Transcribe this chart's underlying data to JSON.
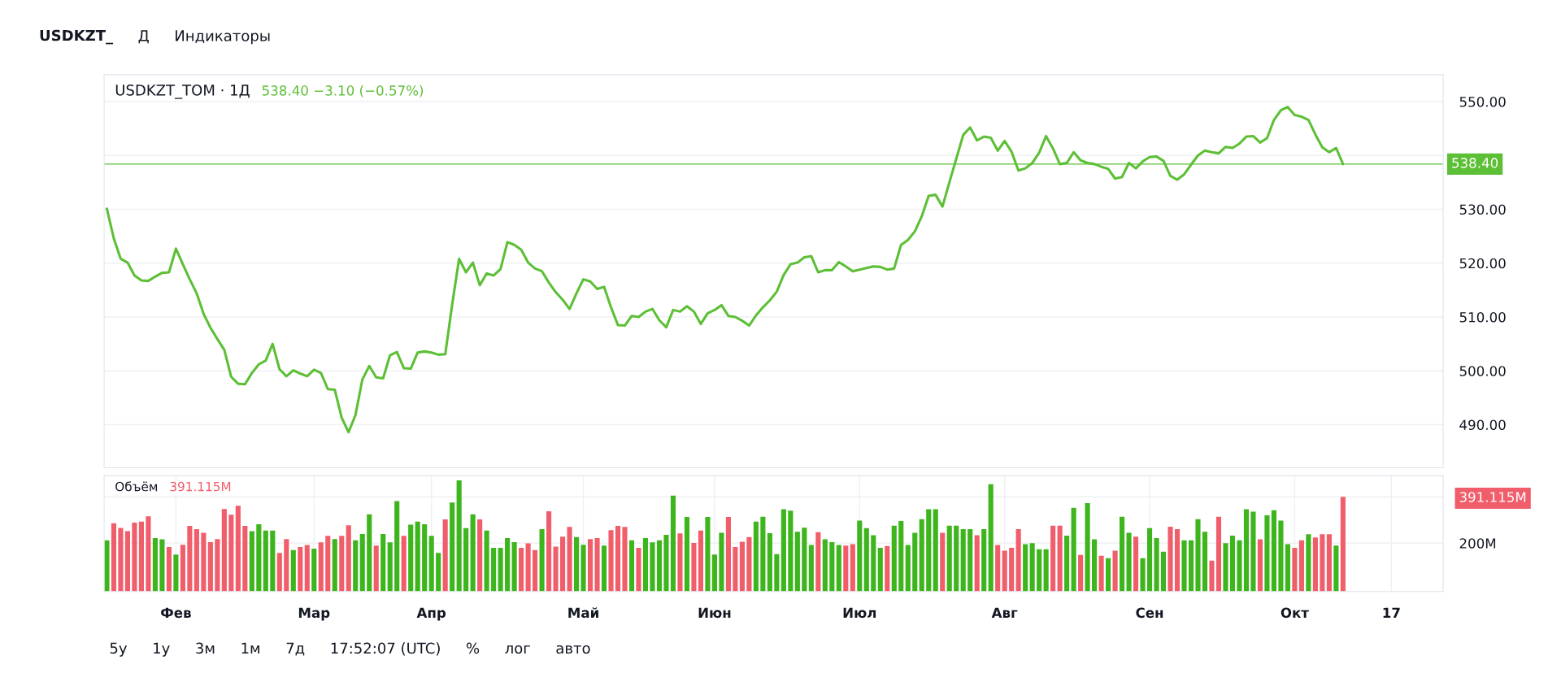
{
  "chart_data": [
    {
      "type": "line",
      "title": "USDKZT_TOM · 1Д",
      "subtitle": "538.40 −3.10 (−0.57%)",
      "annotations": [
        "USDKZT_",
        "Д",
        "Индикаторы"
      ],
      "categories": [
        null,
        null,
        null,
        null,
        null,
        null,
        null,
        null,
        null,
        null,
        null,
        null,
        null,
        null,
        null,
        null,
        null,
        null,
        null,
        null,
        null,
        null,
        null,
        null,
        null,
        null,
        null,
        null,
        null,
        null,
        null,
        null,
        null,
        null,
        null,
        null,
        null,
        null,
        null,
        null,
        null,
        null,
        null,
        null,
        null,
        null,
        null,
        null,
        null,
        null,
        null,
        null,
        null,
        null,
        null,
        null,
        null,
        null,
        null,
        null,
        null,
        null,
        null,
        null,
        null,
        null,
        null,
        null,
        null,
        null,
        null,
        null,
        null,
        null,
        null,
        null,
        null,
        null,
        null,
        null,
        null,
        null,
        null,
        null,
        null,
        null,
        null,
        null,
        null,
        null,
        null,
        null,
        null,
        null,
        null,
        null,
        null,
        null,
        null,
        null,
        null,
        null,
        null,
        null,
        null,
        null,
        null,
        null,
        null,
        null,
        null,
        null,
        null,
        null,
        null,
        null,
        null,
        null,
        null,
        null,
        null,
        null,
        null,
        null,
        null,
        null,
        null,
        null,
        null,
        null,
        null,
        null,
        null,
        null,
        null,
        null,
        null,
        null,
        null,
        null,
        null,
        null,
        null,
        null,
        null,
        null,
        null,
        null,
        null,
        null,
        null,
        null,
        null,
        null,
        null,
        null,
        null,
        null,
        null,
        null,
        null,
        null,
        null,
        null,
        null,
        null,
        null,
        null,
        null,
        null,
        null,
        null,
        null,
        null,
        null,
        null,
        null,
        null,
        null,
        null,
        null,
        null,
        null,
        null,
        null,
        null,
        null,
        null,
        null,
        null,
        null,
        null,
        null,
        null
      ],
      "series": [
        {
          "color": "#5cbf35",
          "values": [
            530.1,
            524.6,
            520.8,
            520.1,
            517.7,
            516.8,
            516.7,
            517.5,
            518.2,
            518.3,
            522.7,
            519.8,
            517,
            514.4,
            510.6,
            508,
            505.9,
            503.9,
            498.9,
            497.6,
            497.5,
            499.6,
            501.2,
            501.9,
            505,
            500.3,
            499,
            500.1,
            499.5,
            499,
            500.2,
            499.6,
            496.6,
            496.5,
            491.3,
            488.6,
            491.8,
            498.4,
            500.9,
            498.8,
            498.6,
            502.9,
            503.5,
            500.5,
            500.4,
            503.4,
            503.6,
            503.4,
            503,
            503.1,
            512.3,
            520.8,
            518.3,
            520.1,
            515.9,
            518.1,
            517.7,
            518.9,
            523.9,
            523.4,
            522.5,
            520.1,
            519,
            518.5,
            516.4,
            514.6,
            513.2,
            511.5,
            514.4,
            517,
            516.6,
            515.2,
            515.6,
            511.8,
            508.5,
            508.4,
            510.2,
            510,
            511,
            511.5,
            509.4,
            508.1,
            511.3,
            511,
            512,
            511,
            508.7,
            510.7,
            511.3,
            512.2,
            510.2,
            510,
            509.3,
            508.4,
            510.3,
            511.8,
            513.1,
            514.7,
            517.8,
            519.8,
            520.1,
            521.1,
            521.3,
            518.3,
            518.7,
            518.7,
            520.2,
            519.4,
            518.5,
            518.8,
            519.1,
            519.4,
            519.3,
            518.8,
            519,
            523.4,
            524.3,
            525.9,
            528.7,
            532.5,
            532.7,
            530.5,
            535,
            539.4,
            543.8,
            545.2,
            542.8,
            543.5,
            543.3,
            540.9,
            542.7,
            540.7,
            537.2,
            537.6,
            538.6,
            540.5,
            543.6,
            541.3,
            538.4,
            538.6,
            540.6,
            539.1,
            538.6,
            538.4,
            537.9,
            537.5,
            535.7,
            536,
            538.6,
            537.6,
            538.9,
            539.7,
            539.8,
            539,
            536.2,
            535.5,
            536.5,
            538.3,
            540,
            540.9,
            540.6,
            540.4,
            541.6,
            541.4,
            542.2,
            543.5,
            543.6,
            542.4,
            543.2,
            546.6,
            548.4,
            549,
            547.5,
            547.2,
            546.6,
            543.9,
            541.5,
            540.6,
            541.4,
            538.4,
            null,
            null,
            null,
            null,
            null,
            null,
            null,
            null,
            null,
            null,
            null,
            null,
            null,
            null
          ]
        }
      ],
      "ylim": [
        482,
        555
      ],
      "yticks": [
        {
          "value": 490,
          "label": "490.00"
        },
        {
          "value": 500,
          "label": "500.00"
        },
        {
          "value": 510,
          "label": "510.00"
        },
        {
          "value": 520,
          "label": "520.00"
        },
        {
          "value": 530,
          "label": "530.00"
        },
        {
          "value": 540,
          "label": null
        },
        {
          "value": 550,
          "label": "550.00"
        }
      ],
      "ref_lines": [
        {
          "axis": "y",
          "value": 538.4,
          "label": "538.40",
          "color": "#5cbf35"
        }
      ],
      "grid": "y",
      "tick_labels": "y",
      "line_style": "solid",
      "marker": "none"
    },
    {
      "type": "bar",
      "title": "Объём",
      "subtitle": "391.115M",
      "annotations": [
        "5y",
        "1y",
        "3м",
        "1м",
        "7д",
        "17:52:07 (UTC)",
        "%",
        "лог",
        "авто"
      ],
      "categories": [
        null,
        null,
        null,
        null,
        null,
        null,
        null,
        null,
        null,
        null,
        "Фев",
        null,
        null,
        null,
        null,
        null,
        null,
        null,
        null,
        null,
        null,
        null,
        null,
        null,
        null,
        null,
        null,
        null,
        null,
        null,
        "Мар",
        null,
        null,
        null,
        null,
        null,
        null,
        null,
        null,
        null,
        null,
        null,
        null,
        null,
        null,
        null,
        null,
        "Апр",
        null,
        null,
        null,
        null,
        null,
        null,
        null,
        null,
        null,
        null,
        null,
        null,
        null,
        null,
        null,
        null,
        null,
        null,
        null,
        null,
        null,
        "Май",
        null,
        null,
        null,
        null,
        null,
        null,
        null,
        null,
        null,
        null,
        null,
        null,
        null,
        null,
        null,
        null,
        null,
        null,
        "Июн",
        null,
        null,
        null,
        null,
        null,
        null,
        null,
        null,
        null,
        null,
        null,
        null,
        null,
        null,
        null,
        null,
        null,
        null,
        null,
        null,
        "Июл",
        null,
        null,
        null,
        null,
        null,
        null,
        null,
        null,
        null,
        null,
        null,
        null,
        null,
        null,
        null,
        null,
        null,
        null,
        null,
        null,
        "Авг",
        null,
        null,
        null,
        null,
        null,
        null,
        null,
        null,
        null,
        null,
        null,
        null,
        null,
        null,
        null,
        null,
        null,
        null,
        null,
        null,
        "Сен",
        null,
        null,
        null,
        null,
        null,
        null,
        null,
        null,
        null,
        null,
        null,
        null,
        null,
        null,
        null,
        null,
        null,
        null,
        null,
        null,
        "Окт",
        null,
        null,
        null,
        null,
        null,
        null,
        null,
        null,
        null,
        null,
        null,
        null,
        null,
        "17",
        null,
        null,
        null,
        null,
        null,
        null,
        null
      ],
      "values": [
        212,
        282,
        263,
        249,
        285,
        289,
        311,
        221,
        216,
        184,
        153,
        193,
        271,
        258,
        243,
        204,
        217,
        341,
        317,
        354,
        271,
        249,
        278,
        252,
        252,
        160,
        217,
        171,
        184,
        192,
        177,
        203,
        230,
        217,
        230,
        274,
        212,
        238,
        319,
        190,
        238,
        203,
        374,
        230,
        276,
        289,
        278,
        230,
        160,
        298,
        368,
        459,
        262,
        319,
        298,
        252,
        181,
        181,
        221,
        204,
        181,
        199,
        171,
        258,
        332,
        186,
        227,
        267,
        225,
        193,
        217,
        221,
        190,
        254,
        271,
        267,
        212,
        181,
        221,
        203,
        212,
        234,
        396,
        240,
        308,
        201,
        252,
        308,
        153,
        243,
        308,
        184,
        206,
        225,
        289,
        309,
        241,
        155,
        340,
        334,
        247,
        264,
        192,
        245,
        216,
        204,
        192,
        190,
        196,
        293,
        262,
        233,
        181,
        188,
        272,
        291,
        192,
        243,
        299,
        340,
        340,
        243,
        272,
        272,
        258,
        258,
        233,
        258,
        443,
        192,
        169,
        181,
        258,
        196,
        200,
        175,
        175,
        272,
        272,
        231,
        346,
        151,
        365,
        216,
        148,
        138,
        169,
        309,
        243,
        227,
        138,
        262,
        221,
        165,
        268,
        258,
        212,
        212,
        299,
        247,
        128,
        309,
        200,
        231,
        212,
        340,
        330,
        216,
        315,
        336,
        293,
        196,
        181,
        212,
        237,
        223,
        237,
        237,
        190,
        391.115,
        null,
        null,
        null,
        null,
        null,
        null,
        null,
        null,
        null,
        null,
        null,
        null,
        null,
        null
      ],
      "colors": [
        "#3db51d",
        "#f05e6b",
        "#f05e6b",
        "#f05e6b",
        "#f05e6b",
        "#f05e6b",
        "#f05e6b",
        "#3db51d",
        "#3db51d",
        "#f05e6b",
        "#3db51d",
        "#f05e6b",
        "#f05e6b",
        "#f05e6b",
        "#f05e6b",
        "#f05e6b",
        "#f05e6b",
        "#f05e6b",
        "#f05e6b",
        "#f05e6b",
        "#f05e6b",
        "#3db51d",
        "#3db51d",
        "#3db51d",
        "#3db51d",
        "#f05e6b",
        "#f05e6b",
        "#3db51d",
        "#f05e6b",
        "#f05e6b",
        "#3db51d",
        "#f05e6b",
        "#f05e6b",
        "#3db51d",
        "#f05e6b",
        "#f05e6b",
        "#3db51d",
        "#3db51d",
        "#3db51d",
        "#f05e6b",
        "#3db51d",
        "#3db51d",
        "#3db51d",
        "#f05e6b",
        "#3db51d",
        "#3db51d",
        "#3db51d",
        "#3db51d",
        "#3db51d",
        "#f05e6b",
        "#3db51d",
        "#3db51d",
        "#3db51d",
        "#3db51d",
        "#f05e6b",
        "#3db51d",
        "#3db51d",
        "#3db51d",
        "#3db51d",
        "#3db51d",
        "#f05e6b",
        "#f05e6b",
        "#f05e6b",
        "#3db51d",
        "#f05e6b",
        "#f05e6b",
        "#f05e6b",
        "#f05e6b",
        "#3db51d",
        "#3db51d",
        "#f05e6b",
        "#f05e6b",
        "#3db51d",
        "#f05e6b",
        "#f05e6b",
        "#f05e6b",
        "#3db51d",
        "#f05e6b",
        "#3db51d",
        "#3db51d",
        "#3db51d",
        "#3db51d",
        "#3db51d",
        "#f05e6b",
        "#3db51d",
        "#f05e6b",
        "#f05e6b",
        "#3db51d",
        "#3db51d",
        "#3db51d",
        "#f05e6b",
        "#f05e6b",
        "#f05e6b",
        "#f05e6b",
        "#3db51d",
        "#3db51d",
        "#3db51d",
        "#3db51d",
        "#3db51d",
        "#3db51d",
        "#3db51d",
        "#3db51d",
        "#3db51d",
        "#f05e6b",
        "#3db51d",
        "#3db51d",
        "#3db51d",
        "#f05e6b",
        "#f05e6b",
        "#3db51d",
        "#3db51d",
        "#3db51d",
        "#3db51d",
        "#f05e6b",
        "#3db51d",
        "#3db51d",
        "#3db51d",
        "#3db51d",
        "#3db51d",
        "#3db51d",
        "#3db51d",
        "#f05e6b",
        "#3db51d",
        "#3db51d",
        "#3db51d",
        "#3db51d",
        "#f05e6b",
        "#3db51d",
        "#3db51d",
        "#f05e6b",
        "#f05e6b",
        "#f05e6b",
        "#f05e6b",
        "#3db51d",
        "#3db51d",
        "#3db51d",
        "#3db51d",
        "#f05e6b",
        "#f05e6b",
        "#3db51d",
        "#3db51d",
        "#f05e6b",
        "#3db51d",
        "#3db51d",
        "#f05e6b",
        "#3db51d",
        "#f05e6b",
        "#3db51d",
        "#3db51d",
        "#f05e6b",
        "#3db51d",
        "#3db51d",
        "#3db51d",
        "#3db51d",
        "#f05e6b",
        "#f05e6b",
        "#3db51d",
        "#3db51d",
        "#3db51d",
        "#3db51d",
        "#f05e6b",
        "#f05e6b",
        "#3db51d",
        "#3db51d",
        "#3db51d",
        "#3db51d",
        "#3db51d",
        "#f05e6b",
        "#3db51d",
        "#3db51d",
        "#3db51d",
        "#3db51d",
        "#f05e6b",
        "#f05e6b",
        "#3db51d",
        "#f05e6b",
        "#f05e6b",
        "#f05e6b",
        "#3db51d",
        "#f05e6b",
        null,
        null,
        null,
        null,
        null,
        null,
        null,
        null,
        null,
        null,
        null,
        null,
        null,
        null
      ],
      "value_labels": [
        null,
        null,
        null,
        null,
        null,
        null,
        null,
        null,
        null,
        null,
        null,
        null,
        null,
        null,
        null,
        null,
        null,
        null,
        null,
        null,
        null,
        null,
        null,
        null,
        null,
        null,
        null,
        null,
        null,
        null,
        null,
        null,
        null,
        null,
        null,
        null,
        null,
        null,
        null,
        null,
        null,
        null,
        null,
        null,
        null,
        null,
        null,
        null,
        null,
        null,
        null,
        null,
        null,
        null,
        null,
        null,
        null,
        null,
        null,
        null,
        null,
        null,
        null,
        null,
        null,
        null,
        null,
        null,
        null,
        null,
        null,
        null,
        null,
        null,
        null,
        null,
        null,
        null,
        null,
        null,
        null,
        null,
        null,
        null,
        null,
        null,
        null,
        null,
        null,
        null,
        null,
        null,
        null,
        null,
        null,
        null,
        null,
        null,
        null,
        null,
        null,
        null,
        null,
        null,
        null,
        null,
        null,
        null,
        null,
        null,
        null,
        null,
        null,
        null,
        null,
        null,
        null,
        null,
        null,
        null,
        null,
        null,
        null,
        null,
        null,
        null,
        null,
        null,
        null,
        null,
        null,
        null,
        null,
        null,
        null,
        null,
        null,
        null,
        null,
        null,
        null,
        null,
        null,
        null,
        null,
        null,
        null,
        null,
        null,
        null,
        null,
        null,
        null,
        null,
        null,
        null,
        null,
        null,
        null,
        null,
        null,
        null,
        null,
        null,
        null,
        null,
        null,
        null,
        null,
        null,
        null,
        null,
        null,
        null,
        null,
        null,
        null,
        null,
        null,
        null,
        null,
        null,
        null,
        null,
        null,
        null,
        null,
        null,
        null,
        null,
        null,
        null,
        null,
        null
      ],
      "ylim": [
        0,
        478
      ],
      "yticks": [
        {
          "value": 200,
          "label": "200M"
        },
        {
          "value": 391.115,
          "label": "391.115M"
        }
      ],
      "grid": true
    }
  ]
}
